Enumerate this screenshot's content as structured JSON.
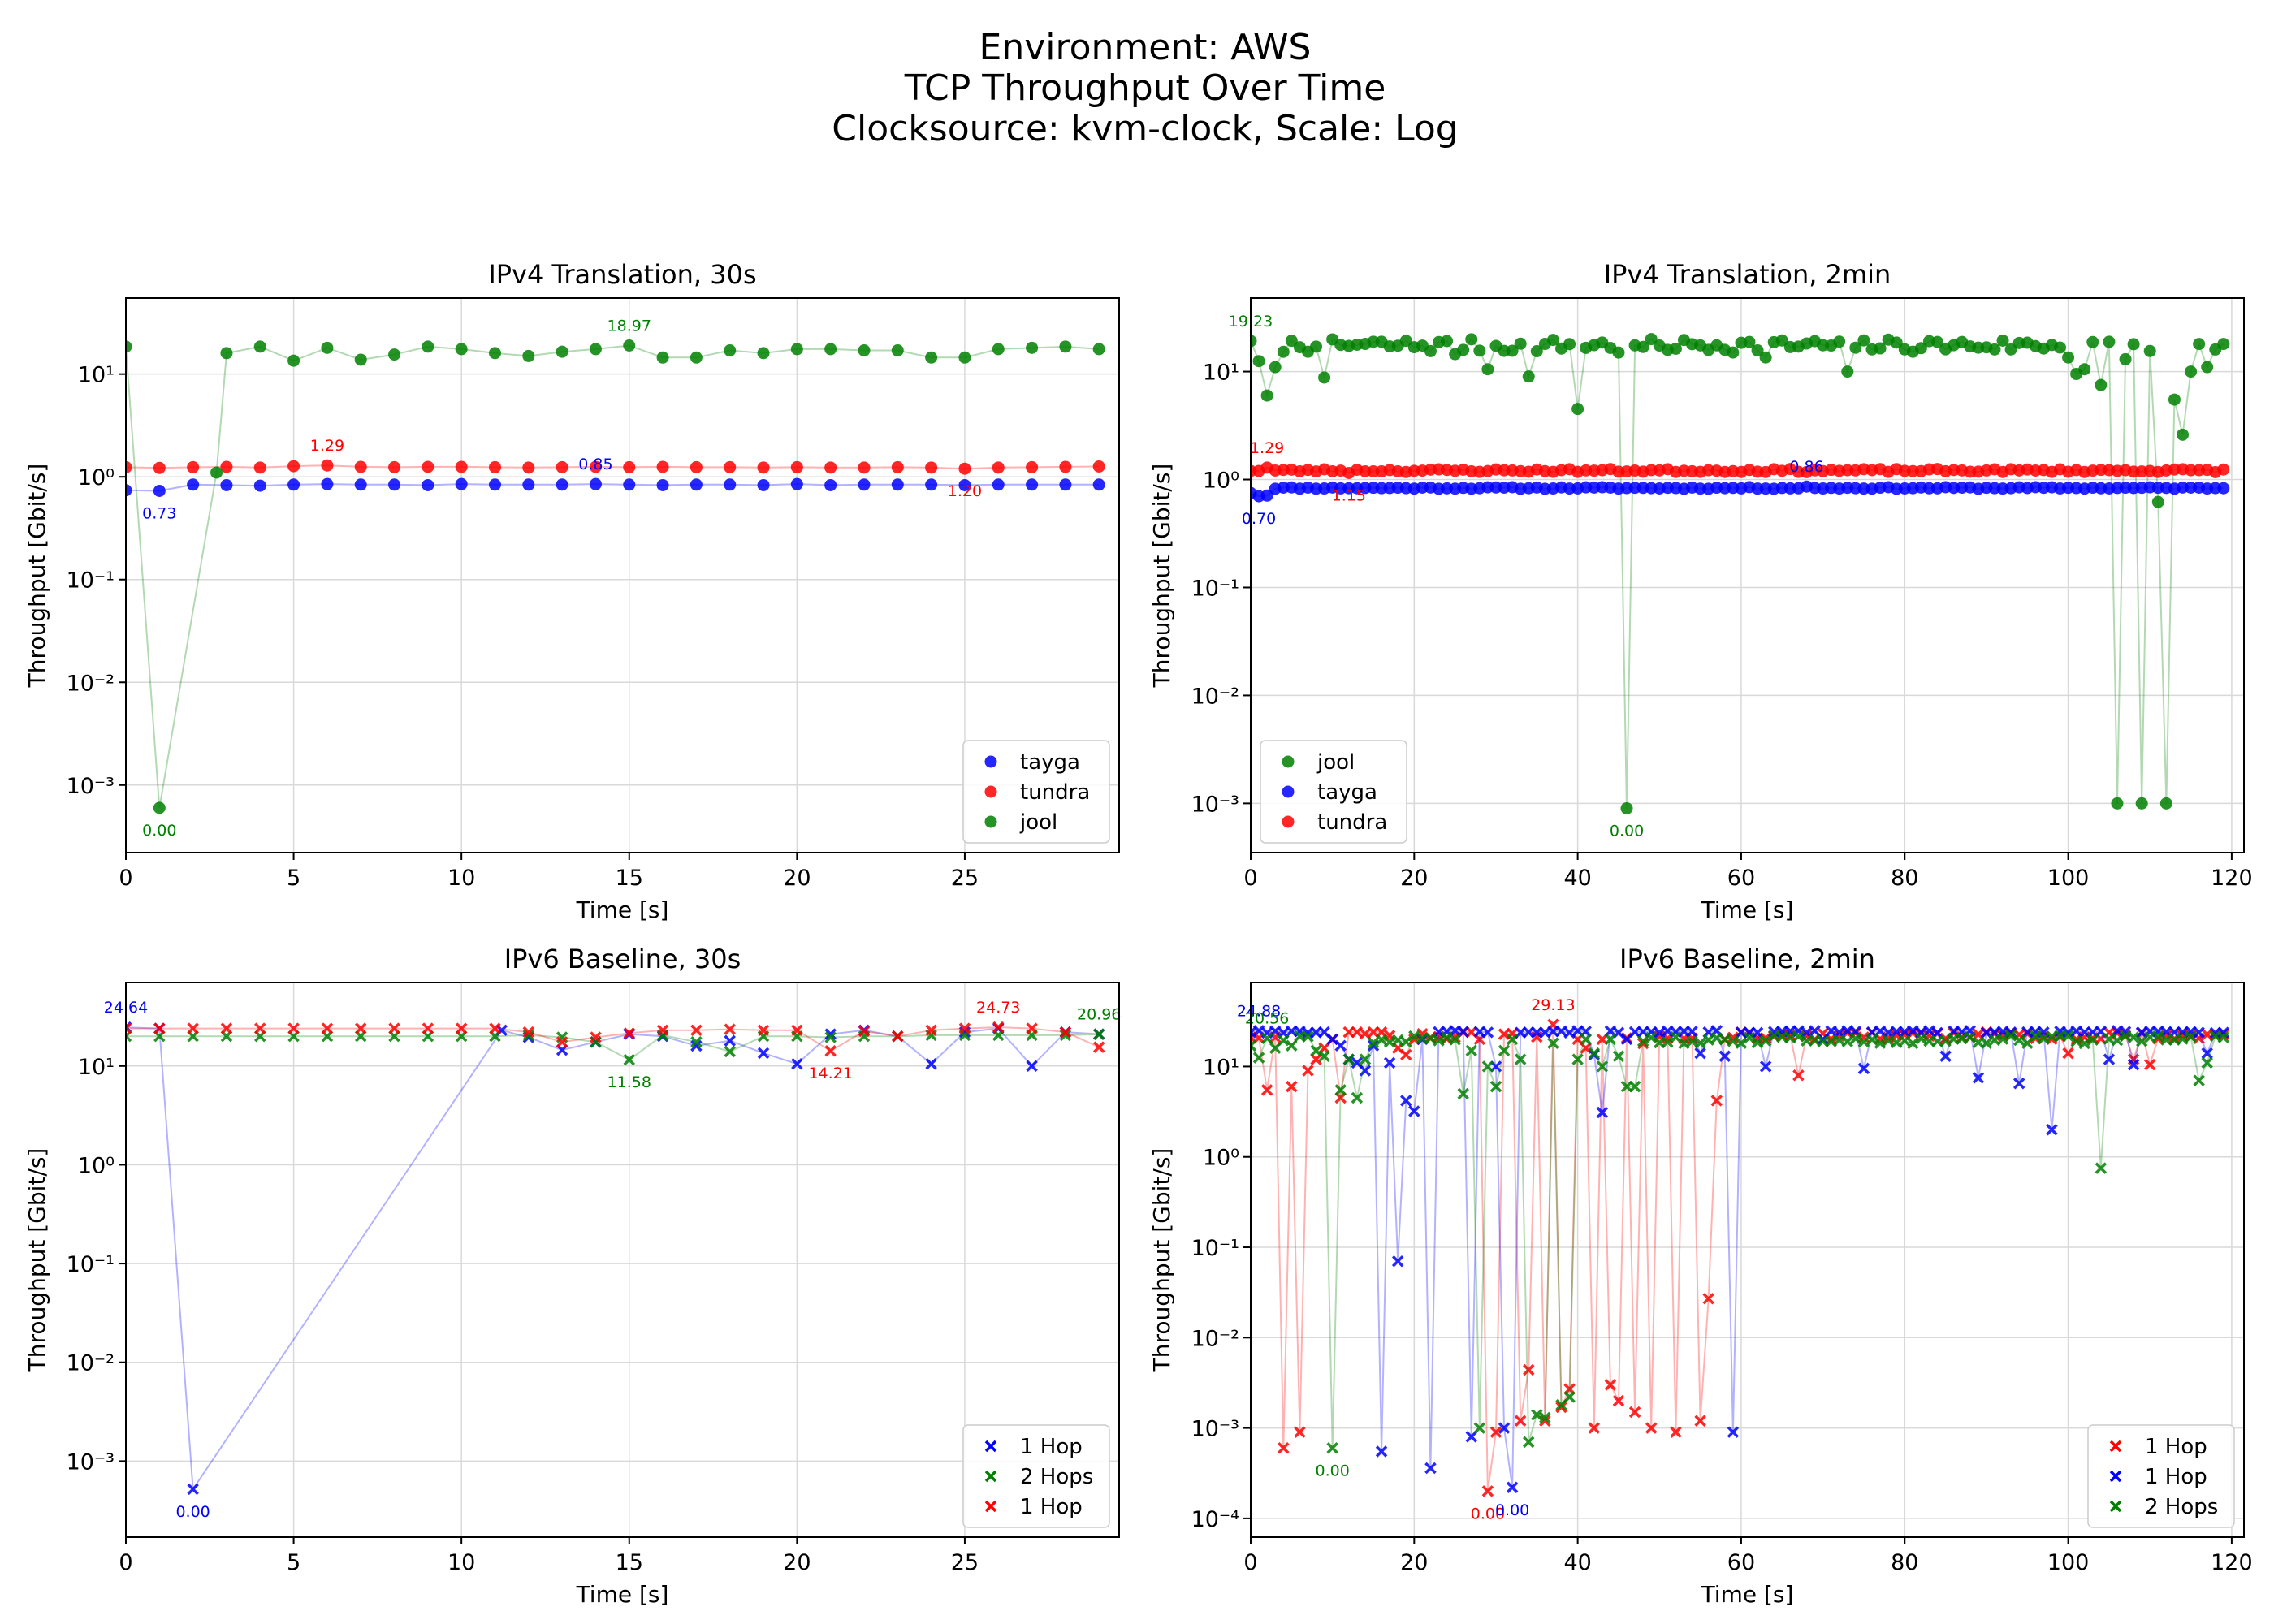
{
  "figure": {
    "title_lines": [
      "Environment: AWS",
      "TCP Throughput Over Time",
      "Clocksource: kvm-clock, Scale: Log"
    ]
  },
  "chart_data": [
    {
      "id": "p1",
      "type": "scatter",
      "title": "IPv4 Translation, 30s",
      "xlabel": "Time [s]",
      "ylabel": "Throughput [Gbit/s]",
      "yscale": "log",
      "xlim": [
        0,
        29.6
      ],
      "ylim": [
        0.00022,
        55
      ],
      "xticks": [
        0,
        5,
        10,
        15,
        20,
        25
      ],
      "yticks": [
        {
          "value": 0.001,
          "label": "10⁻³"
        },
        {
          "value": 0.01,
          "label": "10⁻²"
        },
        {
          "value": 0.1,
          "label": "10⁻¹"
        },
        {
          "value": 1,
          "label": "10⁰"
        },
        {
          "value": 10,
          "label": "10¹"
        }
      ],
      "legend_position": "lower-right",
      "marker": "circle",
      "series": [
        {
          "name": "tayga",
          "color": "#0000ff",
          "x": [
            0,
            1,
            2,
            3,
            4,
            5,
            6,
            7,
            8,
            9,
            10,
            11,
            12,
            13,
            14,
            15,
            16,
            17,
            18,
            19,
            20,
            21,
            22,
            23,
            24,
            25,
            26,
            27,
            28,
            29
          ],
          "values": [
            0.74,
            0.73,
            0.84,
            0.83,
            0.82,
            0.84,
            0.85,
            0.84,
            0.84,
            0.83,
            0.85,
            0.84,
            0.84,
            0.84,
            0.85,
            0.84,
            0.83,
            0.84,
            0.84,
            0.83,
            0.85,
            0.83,
            0.84,
            0.84,
            0.84,
            0.83,
            0.84,
            0.84,
            0.84,
            0.84
          ],
          "labels": [
            {
              "x": 1,
              "y": 0.73,
              "text": "0.73",
              "pos": "below"
            },
            {
              "x": 14,
              "y": 0.85,
              "text": "0.85",
              "pos": "above"
            }
          ]
        },
        {
          "name": "tundra",
          "color": "#ff0000",
          "x": [
            0,
            1,
            2,
            3,
            4,
            5,
            6,
            7,
            8,
            9,
            10,
            11,
            12,
            13,
            14,
            15,
            16,
            17,
            18,
            19,
            20,
            21,
            22,
            23,
            24,
            25,
            26,
            27,
            28,
            29
          ],
          "values": [
            1.24,
            1.22,
            1.24,
            1.25,
            1.23,
            1.27,
            1.29,
            1.25,
            1.24,
            1.25,
            1.25,
            1.24,
            1.23,
            1.24,
            1.25,
            1.24,
            1.25,
            1.24,
            1.24,
            1.23,
            1.24,
            1.23,
            1.23,
            1.24,
            1.23,
            1.2,
            1.23,
            1.24,
            1.25,
            1.26
          ],
          "labels": [
            {
              "x": 6,
              "y": 1.29,
              "text": "1.29",
              "pos": "above"
            },
            {
              "x": 25,
              "y": 1.2,
              "text": "1.20",
              "pos": "below"
            }
          ]
        },
        {
          "name": "jool",
          "color": "#008000",
          "x": [
            0,
            1,
            2.7,
            3,
            4,
            5,
            6,
            7,
            8,
            9,
            10,
            11,
            12,
            13,
            14,
            15,
            16,
            17,
            18,
            19,
            20,
            21,
            22,
            23,
            24,
            25,
            26,
            27,
            28,
            29
          ],
          "values": [
            18.5,
            0.0006,
            1.1,
            16.0,
            18.5,
            13.5,
            18.0,
            13.8,
            15.5,
            18.5,
            17.5,
            16.0,
            15.0,
            16.5,
            17.5,
            18.97,
            14.5,
            14.5,
            17.0,
            16.0,
            17.5,
            17.5,
            17.0,
            17.0,
            14.5,
            14.5,
            17.5,
            18.0,
            18.5,
            17.5
          ],
          "labels": [
            {
              "x": 15,
              "y": 18.97,
              "text": "18.97",
              "pos": "above"
            },
            {
              "x": 1,
              "y": 0.0006,
              "text": "0.00",
              "pos": "below"
            }
          ]
        }
      ]
    },
    {
      "id": "p2",
      "type": "scatter",
      "title": "IPv4 Translation, 2min",
      "xlabel": "Time [s]",
      "ylabel": "Throughput [Gbit/s]",
      "yscale": "log",
      "xlim": [
        0,
        121.5
      ],
      "ylim": [
        0.00035,
        48
      ],
      "xticks": [
        0,
        20,
        40,
        60,
        80,
        100,
        120
      ],
      "yticks": [
        {
          "value": 0.001,
          "label": "10⁻³"
        },
        {
          "value": 0.01,
          "label": "10⁻²"
        },
        {
          "value": 0.1,
          "label": "10⁻¹"
        },
        {
          "value": 1,
          "label": "10⁰"
        },
        {
          "value": 10,
          "label": "10¹"
        }
      ],
      "legend_position": "lower-left",
      "marker": "circle",
      "series": [
        {
          "name": "jool",
          "color": "#008000",
          "generator": "jool2",
          "labels": [
            {
              "x": 0,
              "y": 19.23,
              "text": "19.23",
              "pos": "above"
            },
            {
              "x": 46,
              "y": 0.0009,
              "text": "0.00",
              "pos": "below"
            }
          ]
        },
        {
          "name": "tayga",
          "color": "#0000ff",
          "generator": "tayga2",
          "labels": [
            {
              "x": 1,
              "y": 0.7,
              "text": "0.70",
              "pos": "below"
            },
            {
              "x": 68,
              "y": 0.86,
              "text": "0.86",
              "pos": "above"
            }
          ]
        },
        {
          "name": "tundra",
          "color": "#ff0000",
          "generator": "tundra2",
          "labels": [
            {
              "x": 2,
              "y": 1.29,
              "text": "1.29",
              "pos": "above"
            },
            {
              "x": 12,
              "y": 1.15,
              "text": "1.15",
              "pos": "below"
            }
          ]
        }
      ]
    },
    {
      "id": "p3",
      "type": "scatter",
      "title": "IPv6 Baseline, 30s",
      "xlabel": "Time [s]",
      "ylabel": "Throughput [Gbit/s]",
      "yscale": "log",
      "xlim": [
        0,
        29.6
      ],
      "ylim": [
        0.00017,
        70
      ],
      "xticks": [
        0,
        5,
        10,
        15,
        20,
        25
      ],
      "yticks": [
        {
          "value": 0.001,
          "label": "10⁻³"
        },
        {
          "value": 0.01,
          "label": "10⁻²"
        },
        {
          "value": 0.1,
          "label": "10⁻¹"
        },
        {
          "value": 1,
          "label": "10⁰"
        },
        {
          "value": 10,
          "label": "10¹"
        }
      ],
      "legend_position": "lower-right",
      "marker": "x",
      "series": [
        {
          "name": "1 Hop",
          "color": "#0000ff",
          "x": [
            0,
            1,
            2,
            11.2,
            12,
            13,
            14,
            15,
            16,
            17,
            18,
            19,
            20,
            21,
            22,
            23,
            24,
            25,
            26,
            27,
            28,
            29
          ],
          "values": [
            24.64,
            24.0,
            0.00052,
            23.0,
            19.5,
            14.5,
            17.5,
            21.0,
            20.0,
            16.0,
            18.0,
            13.5,
            10.5,
            21.0,
            23.0,
            20.0,
            10.5,
            22.0,
            24.0,
            10.0,
            22.0,
            21.0
          ],
          "labels": [
            {
              "x": 0,
              "y": 24.64,
              "text": "24.64",
              "pos": "above"
            },
            {
              "x": 2,
              "y": 0.00052,
              "text": "0.00",
              "pos": "below"
            }
          ]
        },
        {
          "name": "2 Hops",
          "color": "#008000",
          "x": [
            0,
            1,
            2,
            3,
            4,
            5,
            6,
            7,
            8,
            9,
            10,
            11,
            12,
            13,
            14,
            15,
            16,
            17,
            18,
            19,
            20,
            21,
            22,
            23,
            24,
            25,
            26,
            27,
            28,
            29
          ],
          "values": [
            20.0,
            20.0,
            20.0,
            20.0,
            20.0,
            20.0,
            20.0,
            20.0,
            20.0,
            20.0,
            20.0,
            20.0,
            20.5,
            19.5,
            17.5,
            11.58,
            20.5,
            17.5,
            14.0,
            20.0,
            20.0,
            19.5,
            20.0,
            20.0,
            20.5,
            20.5,
            20.5,
            20.5,
            20.5,
            20.96
          ],
          "labels": [
            {
              "x": 15,
              "y": 11.58,
              "text": "11.58",
              "pos": "below"
            },
            {
              "x": 29,
              "y": 20.96,
              "text": "20.96",
              "pos": "above"
            }
          ]
        },
        {
          "name": "1 Hop",
          "color": "#ff0000",
          "x": [
            0,
            1,
            2,
            3,
            4,
            5,
            6,
            7,
            8,
            9,
            10,
            11,
            12,
            13,
            14,
            15,
            16,
            17,
            18,
            19,
            20,
            21,
            22,
            23,
            24,
            25,
            26,
            27,
            28,
            29
          ],
          "values": [
            24.0,
            24.0,
            24.0,
            24.0,
            24.0,
            24.0,
            24.0,
            24.0,
            24.0,
            24.0,
            24.0,
            24.0,
            22.0,
            17.5,
            19.5,
            21.5,
            23.0,
            23.0,
            23.5,
            23.0,
            23.0,
            14.21,
            22.5,
            20.0,
            23.0,
            24.0,
            24.73,
            24.0,
            22.0,
            15.5
          ],
          "labels": [
            {
              "x": 21,
              "y": 14.21,
              "text": "14.21",
              "pos": "below"
            },
            {
              "x": 26,
              "y": 24.73,
              "text": "24.73",
              "pos": "above"
            }
          ]
        }
      ]
    },
    {
      "id": "p4",
      "type": "scatter",
      "title": "IPv6 Baseline, 2min",
      "xlabel": "Time [s]",
      "ylabel": "Throughput [Gbit/s]",
      "yscale": "log",
      "xlim": [
        0,
        121.5
      ],
      "ylim": [
        6.2e-05,
        85
      ],
      "xticks": [
        0,
        20,
        40,
        60,
        80,
        100,
        120
      ],
      "yticks": [
        {
          "value": 0.0001,
          "label": "10⁻⁴"
        },
        {
          "value": 0.001,
          "label": "10⁻³"
        },
        {
          "value": 0.01,
          "label": "10⁻²"
        },
        {
          "value": 0.1,
          "label": "10⁻¹"
        },
        {
          "value": 1,
          "label": "10⁰"
        },
        {
          "value": 10,
          "label": "10¹"
        }
      ],
      "legend_position": "lower-right",
      "marker": "x",
      "series": [
        {
          "name": "1 Hop",
          "color": "#ff0000",
          "generator": "red4",
          "labels": [
            {
              "x": 37,
              "y": 29.13,
              "text": "29.13",
              "pos": "above"
            },
            {
              "x": 29,
              "y": 0.0002,
              "text": "0.00",
              "pos": "below"
            }
          ]
        },
        {
          "name": "1 Hop",
          "color": "#0000ff",
          "generator": "blue4",
          "labels": [
            {
              "x": 1,
              "y": 24.88,
              "text": "24.88",
              "pos": "above"
            },
            {
              "x": 32,
              "y": 0.00022,
              "text": "0.00",
              "pos": "below"
            }
          ]
        },
        {
          "name": "2 Hops",
          "color": "#008000",
          "generator": "green4",
          "labels": [
            {
              "x": 2,
              "y": 20.5,
              "text": "20.56",
              "pos": "above"
            },
            {
              "x": 10,
              "y": 0.0006,
              "text": "0.00",
              "pos": "below"
            }
          ]
        }
      ]
    }
  ]
}
